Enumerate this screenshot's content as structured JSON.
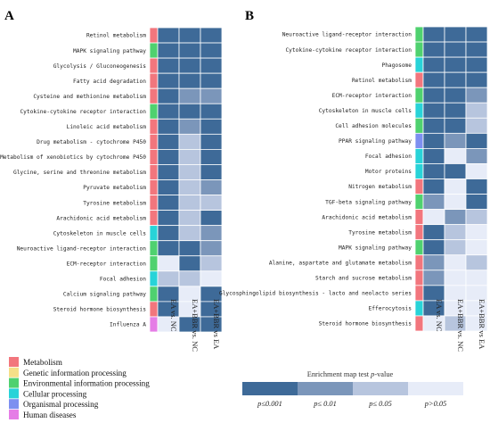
{
  "panels": [
    {
      "letter": "A"
    },
    {
      "letter": "B"
    }
  ],
  "chart_data": [
    {
      "type": "heatmap",
      "panel": "A",
      "columns": [
        "EA vs. NC",
        "EA+BBR vs. NC",
        "EA+BBR vs EA"
      ],
      "rows": [
        {
          "name": "Retinol metabolism",
          "category": "Metabolism",
          "levels": [
            0,
            0,
            0
          ]
        },
        {
          "name": "MAPK signaling pathway",
          "category": "Environmental information processing",
          "levels": [
            0,
            0,
            0
          ]
        },
        {
          "name": "Glycolysis / Gluconeogenesis",
          "category": "Metabolism",
          "levels": [
            0,
            0,
            0
          ]
        },
        {
          "name": "Fatty acid degradation",
          "category": "Metabolism",
          "levels": [
            0,
            0,
            0
          ]
        },
        {
          "name": "Cysteine and methionine metabolism",
          "category": "Metabolism",
          "levels": [
            0,
            1,
            1
          ]
        },
        {
          "name": "Cytokine-cytokine receptor interaction",
          "category": "Environmental information processing",
          "levels": [
            0,
            0,
            0
          ]
        },
        {
          "name": "Linoleic acid metabolism",
          "category": "Metabolism",
          "levels": [
            0,
            1,
            0
          ]
        },
        {
          "name": "Drug metabolism - cytochrome P450",
          "category": "Metabolism",
          "levels": [
            0,
            2,
            0
          ]
        },
        {
          "name": "Metabolism of xenobiotics by cytochrome P450",
          "category": "Metabolism",
          "levels": [
            0,
            2,
            0
          ]
        },
        {
          "name": "Glycine, serine and threonine metabolism",
          "category": "Metabolism",
          "levels": [
            0,
            2,
            0
          ]
        },
        {
          "name": "Pyruvate metabolism",
          "category": "Metabolism",
          "levels": [
            0,
            2,
            1
          ]
        },
        {
          "name": "Tyrosine metabolism",
          "category": "Metabolism",
          "levels": [
            0,
            2,
            2
          ]
        },
        {
          "name": "Arachidonic acid metabolism",
          "category": "Metabolism",
          "levels": [
            0,
            2,
            0
          ]
        },
        {
          "name": "Cytoskeleton in muscle cells",
          "category": "Cellular processing",
          "levels": [
            0,
            2,
            1
          ]
        },
        {
          "name": "Neuroactive ligand-receptor interaction",
          "category": "Environmental information processing",
          "levels": [
            0,
            0,
            1
          ]
        },
        {
          "name": "ECM-receptor interaction",
          "category": "Environmental information processing",
          "levels": [
            3,
            0,
            2
          ]
        },
        {
          "name": "Focal adhesion",
          "category": "Cellular processing",
          "levels": [
            2,
            2,
            3
          ]
        },
        {
          "name": "Calcium signaling pathway",
          "category": "Environmental information processing",
          "levels": [
            0,
            3,
            0
          ]
        },
        {
          "name": "Steroid hormone biosynthesis",
          "category": "Metabolism",
          "levels": [
            0,
            3,
            0
          ]
        },
        {
          "name": "Influenza A",
          "category": "Human diseases",
          "levels": [
            3,
            0,
            0
          ]
        }
      ]
    },
    {
      "type": "heatmap",
      "panel": "B",
      "columns": [
        "EA vs. NC",
        "EA+BBR vs. NC",
        "EA+BBR vs EA"
      ],
      "rows": [
        {
          "name": "Neuroactive ligand-receptor interaction",
          "category": "Environmental information processing",
          "levels": [
            0,
            0,
            0
          ]
        },
        {
          "name": "Cytokine-cytokine receptor interaction",
          "category": "Environmental information processing",
          "levels": [
            0,
            0,
            0
          ]
        },
        {
          "name": "Phagosome",
          "category": "Cellular processing",
          "levels": [
            0,
            0,
            0
          ]
        },
        {
          "name": "Retinol metabolism",
          "category": "Metabolism",
          "levels": [
            0,
            0,
            0
          ]
        },
        {
          "name": "ECM-receptor interaction",
          "category": "Environmental information processing",
          "levels": [
            0,
            0,
            1
          ]
        },
        {
          "name": "Cytoskeleton in muscle cells",
          "category": "Cellular processing",
          "levels": [
            0,
            0,
            2
          ]
        },
        {
          "name": "Cell adhesion molecules",
          "category": "Environmental information processing",
          "levels": [
            0,
            0,
            2
          ]
        },
        {
          "name": "PPAR signaling pathway",
          "category": "Organismal processing",
          "levels": [
            0,
            1,
            0
          ]
        },
        {
          "name": "Focal adhesion",
          "category": "Cellular processing",
          "levels": [
            0,
            3,
            1
          ]
        },
        {
          "name": "Motor proteins",
          "category": "Cellular processing",
          "levels": [
            0,
            0,
            3
          ]
        },
        {
          "name": "Nitrogen metabolism",
          "category": "Metabolism",
          "levels": [
            0,
            3,
            0
          ]
        },
        {
          "name": "TGF-beta signaling pathway",
          "category": "Environmental information processing",
          "levels": [
            1,
            3,
            0
          ]
        },
        {
          "name": "Arachidonic acid metabolism",
          "category": "Metabolism",
          "levels": [
            3,
            1,
            2
          ]
        },
        {
          "name": "Tyrosine metabolism",
          "category": "Metabolism",
          "levels": [
            0,
            2,
            3
          ]
        },
        {
          "name": "MAPK signaling pathway",
          "category": "Environmental information processing",
          "levels": [
            0,
            2,
            3
          ]
        },
        {
          "name": "Alanine, aspartate and glutamate metabolism",
          "category": "Metabolism",
          "levels": [
            1,
            3,
            2
          ]
        },
        {
          "name": "Starch and sucrose metabolism",
          "category": "Metabolism",
          "levels": [
            1,
            3,
            3
          ]
        },
        {
          "name": "Glycosphingolipid biosynthesis - lacto and neolacto series",
          "category": "Metabolism",
          "levels": [
            0,
            3,
            3
          ]
        },
        {
          "name": "Efferocytosis",
          "category": "Cellular processing",
          "levels": [
            0,
            3,
            3
          ]
        },
        {
          "name": "Steroid hormone biosynthesis",
          "category": "Metabolism",
          "levels": [
            3,
            2,
            3
          ]
        }
      ]
    }
  ],
  "category_legend": [
    {
      "label": "Metabolism",
      "color": "#f2767d"
    },
    {
      "label": "Genetic information processing",
      "color": "#f5df88"
    },
    {
      "label": "Environmental information processing",
      "color": "#4fd16f"
    },
    {
      "label": "Cellular processing",
      "color": "#28d3d8"
    },
    {
      "label": "Organismal processing",
      "color": "#7d8ff0"
    },
    {
      "label": "Human diseases",
      "color": "#e57de6"
    }
  ],
  "scale": {
    "title_prefix": "Enrichment map test ",
    "title_italic": "p",
    "title_suffix": "-value",
    "levels": [
      {
        "label": "p≤0.001",
        "color": "#3e6a98"
      },
      {
        "label": "p≤ 0.01",
        "color": "#7b96ba"
      },
      {
        "label": "p≤ 0.05",
        "color": "#b7c5de"
      },
      {
        "label": "p>0.05",
        "color": "#e7ecf8"
      }
    ]
  }
}
